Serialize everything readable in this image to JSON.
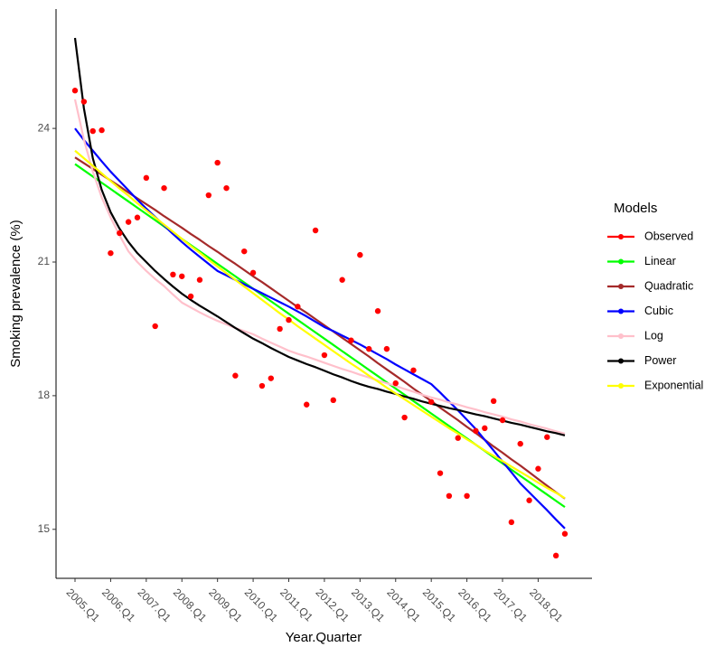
{
  "chart_data": {
    "type": "line",
    "x_label": "Year.Quarter",
    "y_label": "Smoking prevalence (%)",
    "categories": [
      "2005.Q1",
      null,
      null,
      null,
      "2006.Q1",
      null,
      null,
      null,
      "2007.Q1",
      null,
      null,
      null,
      "2008.Q1",
      null,
      null,
      null,
      "2009.Q1",
      null,
      null,
      null,
      "2010.Q1",
      null,
      null,
      null,
      "2011.Q1",
      null,
      null,
      null,
      "2012.Q1",
      null,
      null,
      null,
      "2013.Q1",
      null,
      null,
      null,
      "2014.Q1",
      null,
      null,
      null,
      "2015.Q1",
      null,
      null,
      null,
      "2016.Q1",
      null,
      null,
      null,
      "2017.Q1",
      null,
      null,
      null,
      "2018.Q1",
      null,
      null,
      null
    ],
    "ylim": [
      13.9,
      26.68
    ],
    "yticks": [
      15,
      18,
      21,
      24
    ],
    "legend_title": "Models",
    "legend_position": "right",
    "series": [
      {
        "name": "Observed",
        "color": "#ff0000",
        "mode": "markers",
        "values": [
          24.85,
          24.6,
          23.94,
          23.96,
          21.2,
          21.65,
          21.9,
          22.0,
          22.89,
          19.56,
          22.66,
          20.72,
          20.68,
          20.23,
          20.6,
          22.5,
          23.23,
          22.66,
          18.45,
          21.24,
          20.76,
          18.22,
          18.39,
          19.5,
          19.7,
          20.0,
          17.8,
          21.71,
          18.91,
          17.9,
          20.6,
          19.24,
          21.16,
          19.05,
          19.9,
          19.05,
          18.28,
          17.51,
          18.57,
          null,
          17.86,
          16.26,
          15.75,
          17.05,
          15.75,
          17.21,
          17.27,
          17.88,
          17.45,
          15.16,
          16.92,
          15.65,
          16.36,
          17.07,
          14.41,
          14.9
        ]
      },
      {
        "name": "Linear",
        "color": "#00ff00",
        "mode": "lines",
        "values": [
          23.2,
          23.06,
          22.92,
          22.78,
          22.64,
          22.5,
          22.36,
          22.22,
          22.08,
          21.94,
          21.8,
          21.66,
          21.52,
          21.38,
          21.24,
          21.1,
          20.96,
          20.82,
          20.68,
          20.54,
          20.4,
          20.26,
          20.12,
          19.98,
          19.84,
          19.7,
          19.56,
          19.42,
          19.28,
          19.14,
          19.0,
          18.86,
          18.72,
          18.58,
          18.44,
          18.3,
          18.16,
          18.02,
          17.88,
          17.74,
          17.6,
          17.46,
          17.32,
          17.18,
          17.04,
          16.9,
          16.76,
          16.62,
          16.48,
          16.34,
          16.2,
          16.06,
          15.92,
          15.78,
          15.64,
          15.5
        ]
      },
      {
        "name": "Quadratic",
        "color": "#a52a2a",
        "mode": "lines",
        "values": [
          23.35,
          23.22,
          23.09,
          22.96,
          22.83,
          22.7,
          22.56,
          22.43,
          22.3,
          22.17,
          22.03,
          21.9,
          21.77,
          21.63,
          21.5,
          21.36,
          21.23,
          21.09,
          20.96,
          20.82,
          20.68,
          20.55,
          20.41,
          20.27,
          20.13,
          19.99,
          19.86,
          19.72,
          19.58,
          19.44,
          19.3,
          19.16,
          19.02,
          18.88,
          18.73,
          18.59,
          18.45,
          18.31,
          18.16,
          18.02,
          17.88,
          17.73,
          17.59,
          17.45,
          17.3,
          17.16,
          17.01,
          16.86,
          16.72,
          16.57,
          16.43,
          16.28,
          16.13,
          15.98,
          15.83,
          15.69
        ]
      },
      {
        "name": "Cubic",
        "color": "#0000ff",
        "mode": "lines",
        "values": [
          24.0,
          23.74,
          23.5,
          23.26,
          23.03,
          22.82,
          22.61,
          22.4,
          22.2,
          22.01,
          21.82,
          21.63,
          21.45,
          21.28,
          21.12,
          20.96,
          20.8,
          20.7,
          20.6,
          20.5,
          20.4,
          20.3,
          20.2,
          20.1,
          20.0,
          19.89,
          19.78,
          19.66,
          19.54,
          19.45,
          19.35,
          19.25,
          19.15,
          19.04,
          18.93,
          18.82,
          18.7,
          18.59,
          18.48,
          18.37,
          18.26,
          18.07,
          17.87,
          17.67,
          17.46,
          17.25,
          17.01,
          16.77,
          16.52,
          16.28,
          16.03,
          15.83,
          15.63,
          15.43,
          15.22,
          15.02
        ]
      },
      {
        "name": "Log",
        "color": "#ffc0cb",
        "mode": "lines",
        "values": [
          24.65,
          23.75,
          23.03,
          22.45,
          22.0,
          21.6,
          21.24,
          21.0,
          20.8,
          20.62,
          20.46,
          20.27,
          20.09,
          19.98,
          19.87,
          19.77,
          19.68,
          19.6,
          19.52,
          19.45,
          19.38,
          19.28,
          19.19,
          19.1,
          19.01,
          18.94,
          18.88,
          18.81,
          18.74,
          18.67,
          18.6,
          18.54,
          18.47,
          18.41,
          18.34,
          18.28,
          18.22,
          18.15,
          18.09,
          18.02,
          17.96,
          17.91,
          17.85,
          17.8,
          17.74,
          17.69,
          17.63,
          17.58,
          17.53,
          17.47,
          17.42,
          17.36,
          17.31,
          17.26,
          17.2,
          17.15
        ]
      },
      {
        "name": "Power",
        "color": "#000000",
        "mode": "lines",
        "values": [
          26.03,
          24.45,
          23.33,
          22.62,
          22.12,
          21.75,
          21.45,
          21.2,
          21.0,
          20.8,
          20.62,
          20.45,
          20.29,
          20.15,
          20.02,
          19.9,
          19.78,
          19.65,
          19.52,
          19.4,
          19.28,
          19.18,
          19.07,
          18.97,
          18.87,
          18.79,
          18.71,
          18.64,
          18.56,
          18.48,
          18.41,
          18.33,
          18.26,
          18.2,
          18.15,
          18.09,
          18.04,
          17.98,
          17.93,
          17.87,
          17.82,
          17.77,
          17.72,
          17.68,
          17.63,
          17.58,
          17.54,
          17.49,
          17.44,
          17.39,
          17.35,
          17.3,
          17.25,
          17.2,
          17.16,
          17.11
        ]
      },
      {
        "name": "Exponential",
        "color": "#ffff00",
        "mode": "lines",
        "values": [
          23.5,
          23.33,
          23.16,
          22.99,
          22.82,
          22.65,
          22.49,
          22.32,
          22.16,
          22.0,
          21.84,
          21.68,
          21.52,
          21.36,
          21.21,
          21.05,
          20.9,
          20.75,
          20.6,
          20.45,
          20.3,
          20.15,
          20.0,
          19.85,
          19.71,
          19.56,
          19.42,
          19.28,
          19.14,
          19.0,
          18.86,
          18.72,
          18.59,
          18.45,
          18.32,
          18.18,
          18.05,
          17.92,
          17.79,
          17.66,
          17.53,
          17.4,
          17.27,
          17.15,
          17.02,
          16.9,
          16.77,
          16.65,
          16.53,
          16.41,
          16.29,
          16.17,
          16.05,
          15.93,
          15.82,
          15.7
        ]
      }
    ]
  }
}
